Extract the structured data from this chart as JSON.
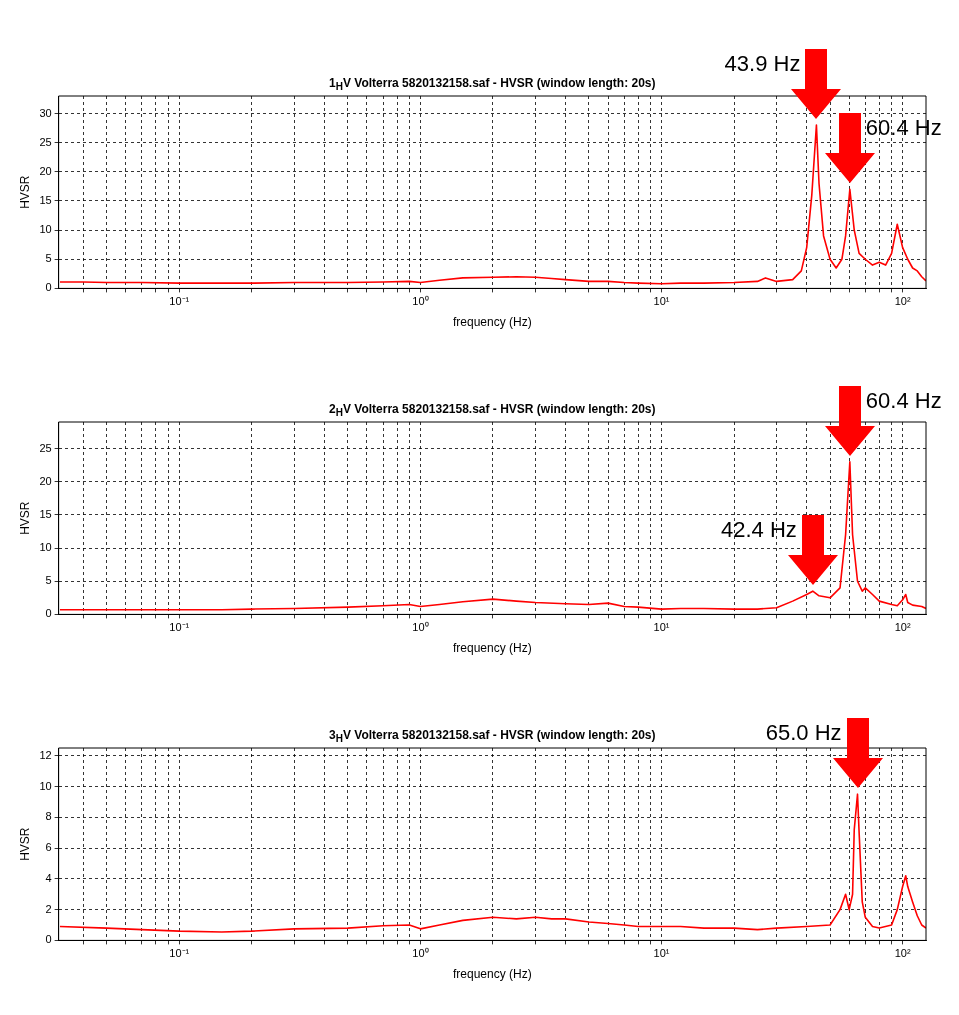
{
  "chart_data": [
    {
      "type": "line",
      "title": "1$_{H}$V Volterra 5820132158.saf - HVSR (window length: 20s)",
      "xlabel": "frequency (Hz)",
      "ylabel": "HVSR",
      "log": "x",
      "grid": true,
      "xlim": [
        0.0316,
        125
      ],
      "ylim": [
        0,
        33
      ],
      "xticks": [
        {
          "value": 0.04,
          "label": null
        },
        {
          "value": 0.05,
          "label": null
        },
        {
          "value": 0.06,
          "label": null
        },
        {
          "value": 0.07,
          "label": null
        },
        {
          "value": 0.08,
          "label": null
        },
        {
          "value": 0.09,
          "label": null
        },
        {
          "value": 0.1,
          "label": "10⁻¹"
        },
        {
          "value": 0.2,
          "label": null
        },
        {
          "value": 0.3,
          "label": null
        },
        {
          "value": 0.4,
          "label": null
        },
        {
          "value": 0.5,
          "label": null
        },
        {
          "value": 0.6,
          "label": null
        },
        {
          "value": 0.7,
          "label": null
        },
        {
          "value": 0.8,
          "label": null
        },
        {
          "value": 0.9,
          "label": null
        },
        {
          "value": 1,
          "label": "10⁰"
        },
        {
          "value": 2,
          "label": null
        },
        {
          "value": 3,
          "label": null
        },
        {
          "value": 4,
          "label": null
        },
        {
          "value": 5,
          "label": null
        },
        {
          "value": 6,
          "label": null
        },
        {
          "value": 7,
          "label": null
        },
        {
          "value": 8,
          "label": null
        },
        {
          "value": 9,
          "label": null
        },
        {
          "value": 10,
          "label": "10¹"
        },
        {
          "value": 20,
          "label": null
        },
        {
          "value": 30,
          "label": null
        },
        {
          "value": 40,
          "label": null
        },
        {
          "value": 50,
          "label": null
        },
        {
          "value": 60,
          "label": null
        },
        {
          "value": 70,
          "label": null
        },
        {
          "value": 80,
          "label": null
        },
        {
          "value": 90,
          "label": null
        },
        {
          "value": 100,
          "label": "10²"
        }
      ],
      "yticks": [
        0,
        5,
        10,
        15,
        20,
        25,
        30
      ],
      "series": [
        {
          "color": "#ff0000",
          "x": [
            0.032,
            0.04,
            0.05,
            0.07,
            0.1,
            0.15,
            0.2,
            0.3,
            0.4,
            0.5,
            0.7,
            0.9,
            1.0,
            1.2,
            1.5,
            2,
            2.5,
            3,
            3.5,
            4,
            5,
            6,
            7,
            8,
            10,
            12,
            15,
            20,
            25,
            27,
            30,
            35,
            38,
            40,
            42,
            43.9,
            45,
            47,
            50,
            53,
            56,
            58,
            60.4,
            63,
            66,
            70,
            75,
            80,
            85,
            90,
            95,
            100,
            105,
            110,
            115,
            120,
            125
          ],
          "values": [
            1.1,
            1.1,
            1.0,
            1.0,
            0.9,
            0.9,
            0.9,
            1.0,
            1.0,
            1.0,
            1.1,
            1.2,
            1.0,
            1.4,
            1.8,
            1.9,
            2.0,
            1.9,
            1.7,
            1.5,
            1.2,
            1.2,
            1.0,
            0.9,
            0.8,
            0.9,
            0.9,
            1.0,
            1.2,
            1.8,
            1.2,
            1.5,
            3,
            7,
            16,
            28,
            18,
            9,
            5,
            3.5,
            5,
            9,
            17,
            10,
            6,
            5,
            4,
            4.5,
            4,
            6,
            11,
            7,
            5,
            3.5,
            3,
            2,
            1.3
          ]
        }
      ],
      "annotations": [
        {
          "text": "43.9 Hz",
          "x": 43.9,
          "y": 28
        },
        {
          "text": "60.4 Hz",
          "x": 60.4,
          "y": 17
        }
      ]
    },
    {
      "type": "line",
      "title": "2$_{H}$V Volterra 5820132158.saf - HVSR (window length: 20s)",
      "xlabel": "frequency (Hz)",
      "ylabel": "HVSR",
      "log": "x",
      "grid": true,
      "xlim": [
        0.0316,
        125
      ],
      "ylim": [
        0,
        29
      ],
      "xticks": [
        {
          "value": 0.04,
          "label": null
        },
        {
          "value": 0.05,
          "label": null
        },
        {
          "value": 0.06,
          "label": null
        },
        {
          "value": 0.07,
          "label": null
        },
        {
          "value": 0.08,
          "label": null
        },
        {
          "value": 0.09,
          "label": null
        },
        {
          "value": 0.1,
          "label": "10⁻¹"
        },
        {
          "value": 0.2,
          "label": null
        },
        {
          "value": 0.3,
          "label": null
        },
        {
          "value": 0.4,
          "label": null
        },
        {
          "value": 0.5,
          "label": null
        },
        {
          "value": 0.6,
          "label": null
        },
        {
          "value": 0.7,
          "label": null
        },
        {
          "value": 0.8,
          "label": null
        },
        {
          "value": 0.9,
          "label": null
        },
        {
          "value": 1,
          "label": "10⁰"
        },
        {
          "value": 2,
          "label": null
        },
        {
          "value": 3,
          "label": null
        },
        {
          "value": 4,
          "label": null
        },
        {
          "value": 5,
          "label": null
        },
        {
          "value": 6,
          "label": null
        },
        {
          "value": 7,
          "label": null
        },
        {
          "value": 8,
          "label": null
        },
        {
          "value": 9,
          "label": null
        },
        {
          "value": 10,
          "label": "10¹"
        },
        {
          "value": 20,
          "label": null
        },
        {
          "value": 30,
          "label": null
        },
        {
          "value": 40,
          "label": null
        },
        {
          "value": 50,
          "label": null
        },
        {
          "value": 60,
          "label": null
        },
        {
          "value": 70,
          "label": null
        },
        {
          "value": 80,
          "label": null
        },
        {
          "value": 90,
          "label": null
        },
        {
          "value": 100,
          "label": "10²"
        }
      ],
      "yticks": [
        0,
        5,
        10,
        15,
        20,
        25
      ],
      "series": [
        {
          "color": "#ff0000",
          "x": [
            0.032,
            0.05,
            0.07,
            0.1,
            0.15,
            0.2,
            0.3,
            0.5,
            0.7,
            0.9,
            1.0,
            1.2,
            1.5,
            2,
            2.5,
            3,
            4,
            5,
            6,
            7,
            8,
            10,
            12,
            15,
            20,
            25,
            30,
            35,
            40,
            42.4,
            45,
            50,
            55,
            58,
            60.4,
            62,
            65,
            68,
            70,
            75,
            80,
            90,
            95,
            100,
            103,
            105,
            110,
            120,
            125
          ],
          "values": [
            0.7,
            0.7,
            0.7,
            0.7,
            0.7,
            0.8,
            0.9,
            1.1,
            1.3,
            1.5,
            1.2,
            1.5,
            1.9,
            2.3,
            2.0,
            1.8,
            1.6,
            1.5,
            1.7,
            1.2,
            1.1,
            0.8,
            0.9,
            0.9,
            0.8,
            0.8,
            1.0,
            2.0,
            3.0,
            3.5,
            2.8,
            2.5,
            4,
            12,
            23,
            12,
            5,
            3.5,
            4,
            3,
            2,
            1.5,
            1.3,
            2.2,
            3,
            1.8,
            1.4,
            1.2,
            0.9
          ]
        }
      ],
      "annotations": [
        {
          "text": "42.4 Hz",
          "x": 42.4,
          "y": 3.5
        },
        {
          "text": "60.4 Hz",
          "x": 60.4,
          "y": 23
        }
      ]
    },
    {
      "type": "line",
      "title": "3$_{H}$V Volterra 5820132158.saf - HVSR (window length: 20s)",
      "xlabel": "frequency (Hz)",
      "ylabel": "HVSR",
      "log": "x",
      "grid": true,
      "xlim": [
        0.0316,
        125
      ],
      "ylim": [
        0,
        12.5
      ],
      "xticks": [
        {
          "value": 0.04,
          "label": null
        },
        {
          "value": 0.05,
          "label": null
        },
        {
          "value": 0.06,
          "label": null
        },
        {
          "value": 0.07,
          "label": null
        },
        {
          "value": 0.08,
          "label": null
        },
        {
          "value": 0.09,
          "label": null
        },
        {
          "value": 0.1,
          "label": "10⁻¹"
        },
        {
          "value": 0.2,
          "label": null
        },
        {
          "value": 0.3,
          "label": null
        },
        {
          "value": 0.4,
          "label": null
        },
        {
          "value": 0.5,
          "label": null
        },
        {
          "value": 0.6,
          "label": null
        },
        {
          "value": 0.7,
          "label": null
        },
        {
          "value": 0.8,
          "label": null
        },
        {
          "value": 0.9,
          "label": null
        },
        {
          "value": 1,
          "label": "10⁰"
        },
        {
          "value": 2,
          "label": null
        },
        {
          "value": 3,
          "label": null
        },
        {
          "value": 4,
          "label": null
        },
        {
          "value": 5,
          "label": null
        },
        {
          "value": 6,
          "label": null
        },
        {
          "value": 7,
          "label": null
        },
        {
          "value": 8,
          "label": null
        },
        {
          "value": 9,
          "label": null
        },
        {
          "value": 10,
          "label": "10¹"
        },
        {
          "value": 20,
          "label": null
        },
        {
          "value": 30,
          "label": null
        },
        {
          "value": 40,
          "label": null
        },
        {
          "value": 50,
          "label": null
        },
        {
          "value": 60,
          "label": null
        },
        {
          "value": 70,
          "label": null
        },
        {
          "value": 80,
          "label": null
        },
        {
          "value": 90,
          "label": null
        },
        {
          "value": 100,
          "label": "10²"
        }
      ],
      "yticks": [
        0,
        2,
        4,
        6,
        8,
        10,
        12
      ],
      "series": [
        {
          "color": "#ff0000",
          "x": [
            0.032,
            0.05,
            0.07,
            0.1,
            0.15,
            0.2,
            0.3,
            0.5,
            0.7,
            0.9,
            1.0,
            1.2,
            1.5,
            2,
            2.5,
            3,
            3.5,
            4,
            5,
            6,
            7,
            8,
            10,
            12,
            15,
            20,
            25,
            30,
            40,
            50,
            55,
            58,
            60,
            62,
            63,
            65.0,
            66,
            68,
            70,
            75,
            80,
            90,
            95,
            100,
            103,
            105,
            110,
            115,
            120,
            125
          ],
          "values": [
            0.9,
            0.8,
            0.7,
            0.6,
            0.55,
            0.6,
            0.75,
            0.8,
            0.95,
            1.0,
            0.75,
            1.0,
            1.3,
            1.5,
            1.4,
            1.5,
            1.4,
            1.4,
            1.2,
            1.1,
            1.0,
            0.9,
            0.9,
            0.9,
            0.8,
            0.8,
            0.7,
            0.8,
            0.9,
            1.0,
            2.0,
            3.0,
            2.0,
            3.0,
            7.2,
            9.5,
            7,
            2.5,
            1.5,
            0.9,
            0.8,
            1.0,
            2.0,
            3.5,
            4.2,
            3.5,
            2.5,
            1.6,
            1.0,
            0.8
          ]
        }
      ],
      "annotations": [
        {
          "text": "65.0 Hz",
          "x": 65.0,
          "y": 9.5
        }
      ]
    }
  ]
}
